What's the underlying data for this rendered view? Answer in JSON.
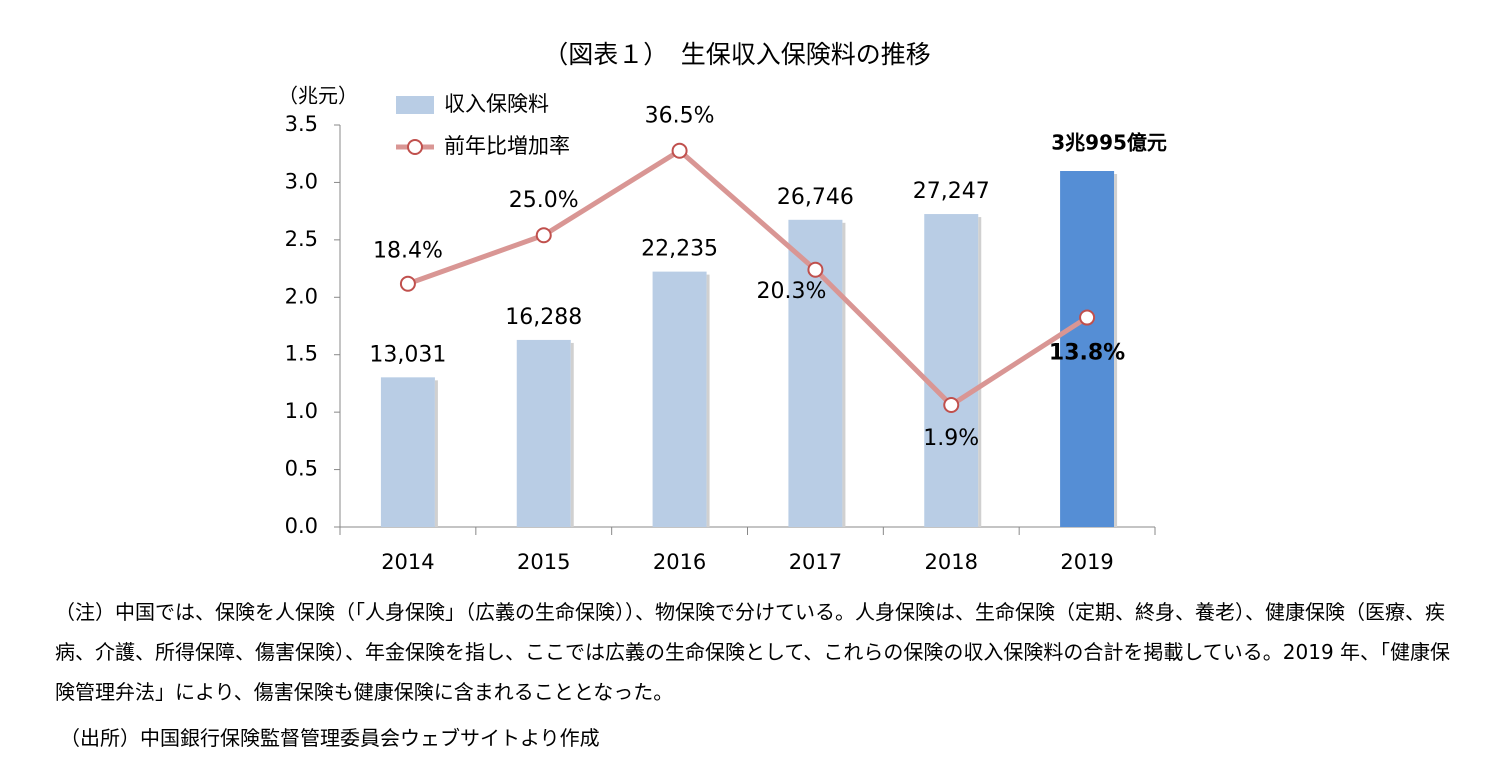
{
  "chart_data": {
    "type": "combo",
    "title": "（図表１）　生保収入保険料の推移",
    "y_label": "（兆元）",
    "categories": [
      "2014",
      "2015",
      "2016",
      "2017",
      "2018",
      "2019"
    ],
    "ylim": [
      0,
      3.5
    ],
    "yticks": [
      {
        "value": 0,
        "label": "0.0"
      },
      0.5,
      {
        "value": 1,
        "label": "1.0"
      },
      1.5,
      {
        "value": 2,
        "label": "2.0"
      },
      2.5,
      {
        "value": 3,
        "label": "3.0"
      },
      3.5
    ],
    "y2lim": [
      -14.7,
      40
    ],
    "series": [
      {
        "name": "収入保険料",
        "type": "bar",
        "color": "#b9cde5",
        "colors": [
          "#b9cde5",
          "#b9cde5",
          "#b9cde5",
          "#b9cde5",
          "#b9cde5",
          "#558ed5"
        ],
        "values": [
          1.3031,
          1.6288,
          2.2235,
          2.6746,
          2.7247,
          3.0995
        ],
        "value_labels": [
          "13,031",
          "16,288",
          "22,235",
          "26,746",
          "27,247",
          "3兆995億元"
        ]
      },
      {
        "name": "前年比増加率",
        "type": "line",
        "axis": "y2",
        "color": "#d99694",
        "marker_edge": "#c0504d",
        "values": [
          18.4,
          25.0,
          36.5,
          20.3,
          1.9,
          13.8
        ],
        "value_labels": [
          "18.4%",
          "25.0%",
          "36.5%",
          "20.3%",
          "1.9%",
          "13.8%"
        ]
      }
    ]
  },
  "notes": {
    "note": "（注）中国では、保険を人保険（「人身保険」（広義の生命保険））、物保険で分けている。人身保険は、生命保険（定期、終身、養老）、健康保険（医療、疾病、介護、所得保障、傷害保険）、年金保険を指し、ここでは広義の生命保険として、これらの保険の収入保険料の合計を掲載している。2019 年、「健康保険管理弁法」により、傷害保険も健康保険に含まれることとなった。",
    "source": "（出所）中国銀行保険監督管理委員会ウェブサイトより作成"
  }
}
